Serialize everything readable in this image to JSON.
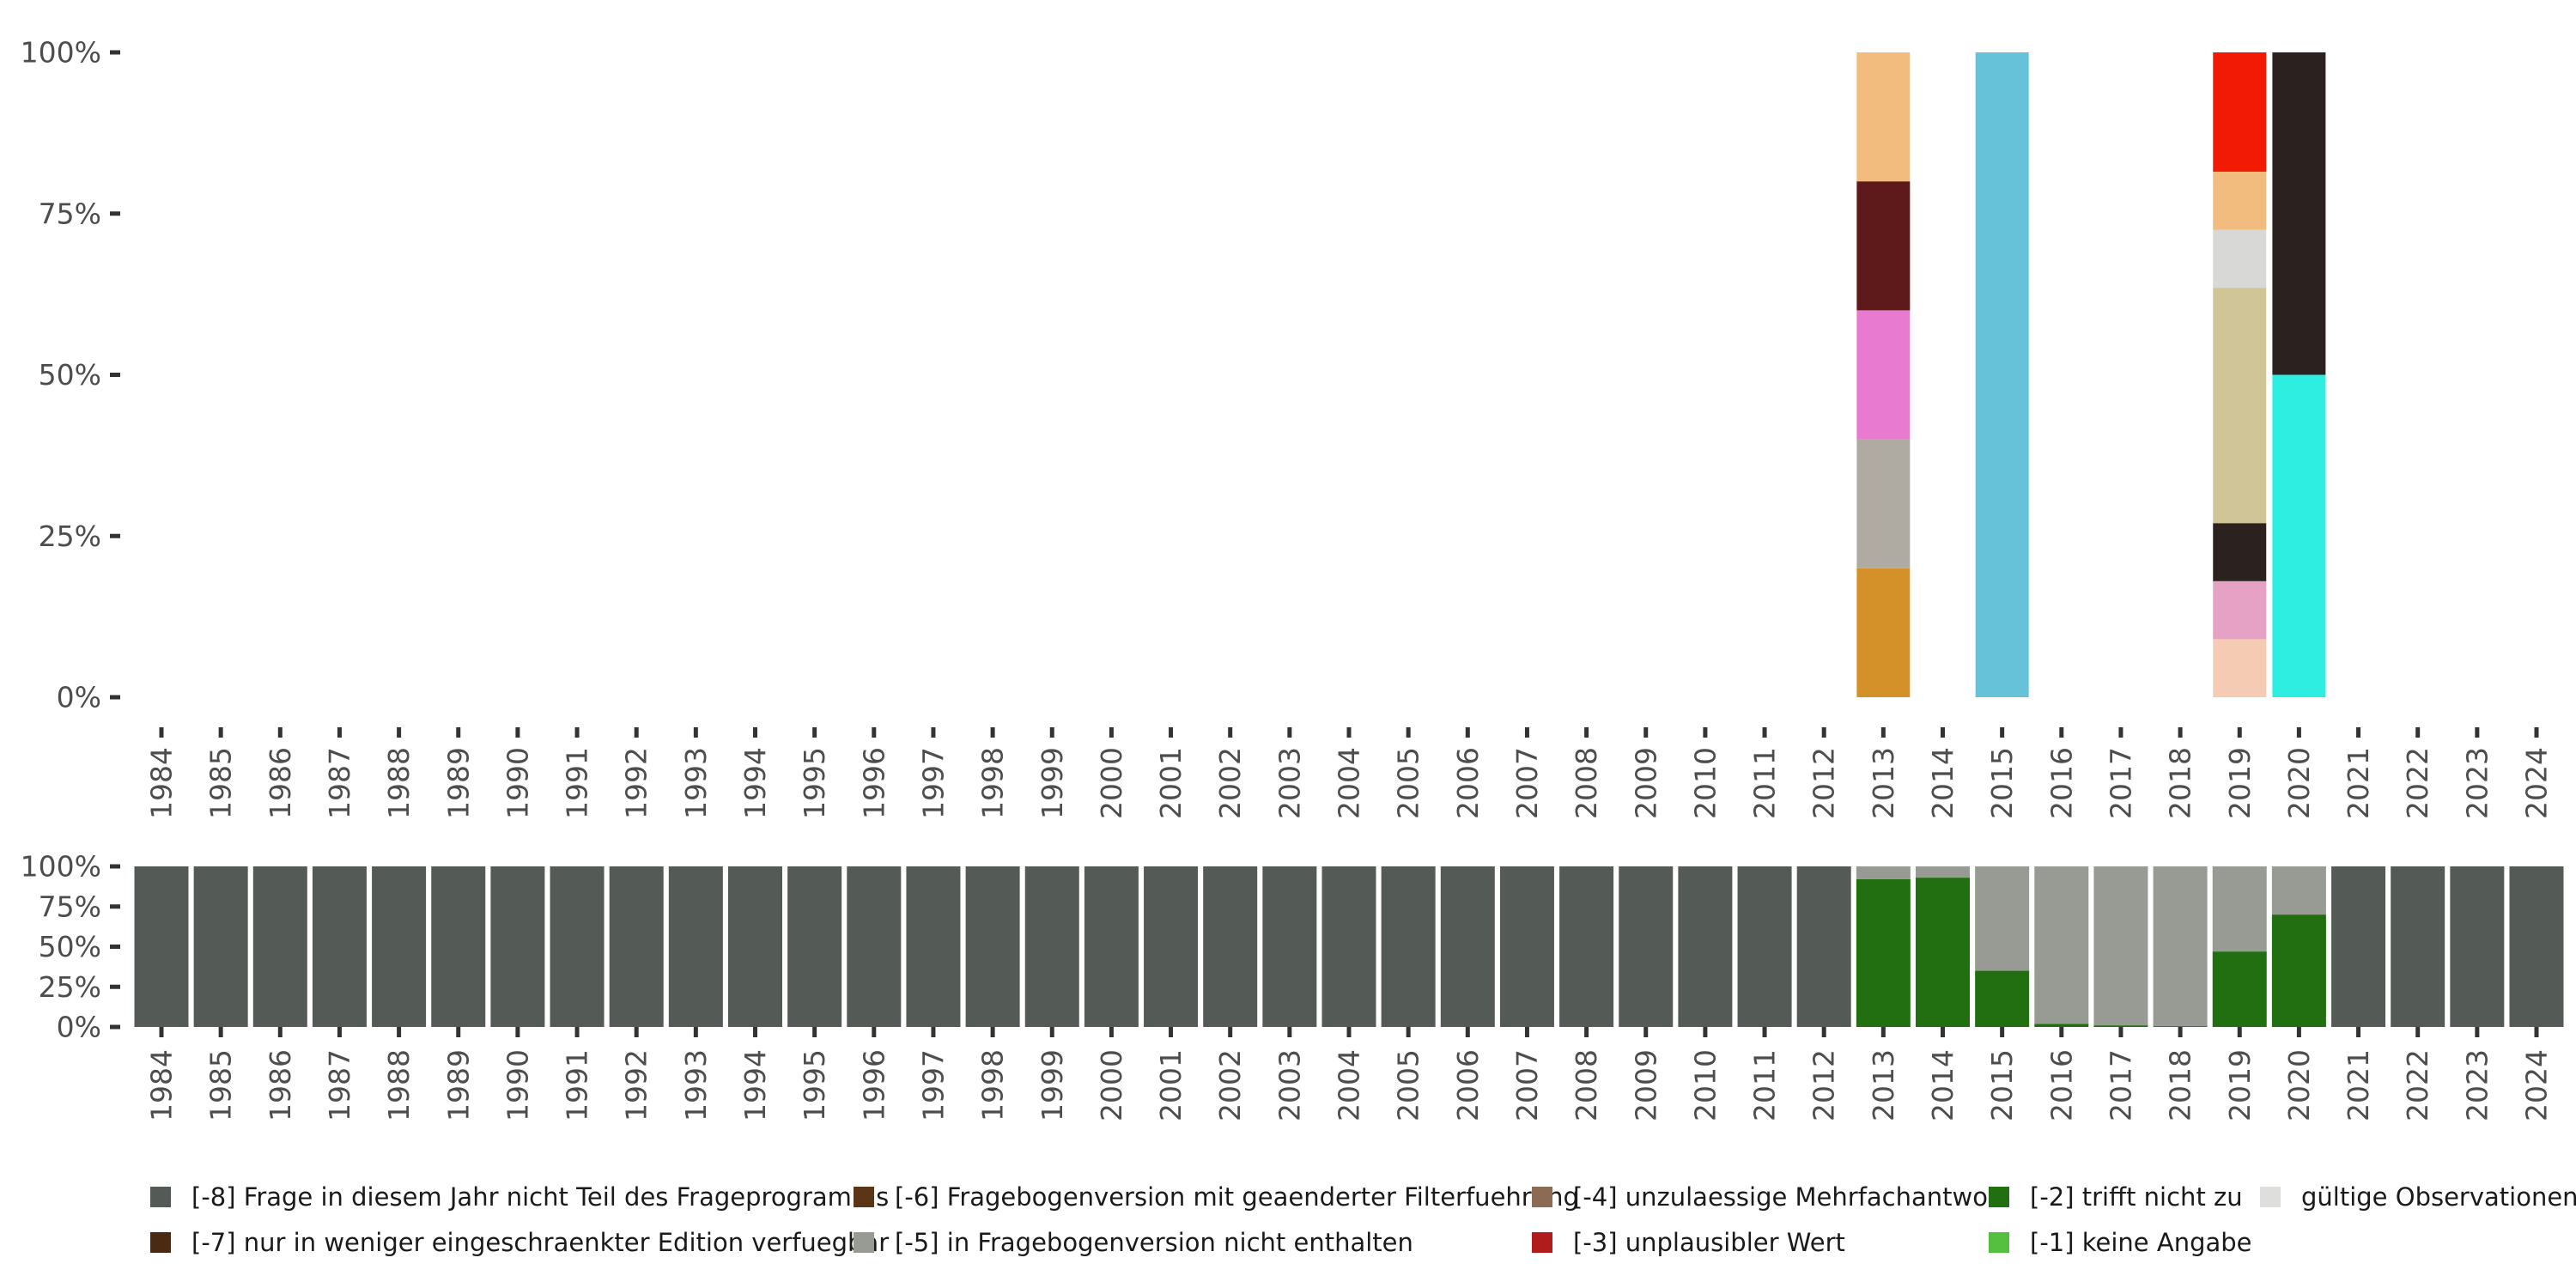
{
  "chart_data": [
    {
      "id": "top",
      "type": "bar",
      "stacked": true,
      "categories": [
        "1984",
        "1985",
        "1986",
        "1987",
        "1988",
        "1989",
        "1990",
        "1991",
        "1992",
        "1993",
        "1994",
        "1995",
        "1996",
        "1997",
        "1998",
        "1999",
        "2000",
        "2001",
        "2002",
        "2003",
        "2004",
        "2005",
        "2006",
        "2007",
        "2008",
        "2009",
        "2010",
        "2011",
        "2012",
        "2013",
        "2014",
        "2015",
        "2016",
        "2017",
        "2018",
        "2019",
        "2020",
        "2021",
        "2022",
        "2023",
        "2024"
      ],
      "ylim": [
        0,
        100
      ],
      "yticks": [
        0,
        25,
        50,
        75,
        100
      ],
      "ytick_labels": [
        "0%",
        "25%",
        "50%",
        "75%",
        "100%"
      ],
      "stacks": [
        {
          "category": "2013",
          "segments": [
            {
              "value": 20,
              "color": "#D4912A"
            },
            {
              "value": 20,
              "color": "#B0ABA2"
            },
            {
              "value": 20,
              "color": "#E87BD0"
            },
            {
              "value": 20,
              "color": "#5E1A1A"
            },
            {
              "value": 20,
              "color": "#F2BC7E"
            }
          ]
        },
        {
          "category": "2015",
          "segments": [
            {
              "value": 100,
              "color": "#66C2D9"
            }
          ]
        },
        {
          "category": "2019",
          "segments": [
            {
              "value": 9,
              "color": "#F5CBB4"
            },
            {
              "value": 9,
              "color": "#E6A2C5"
            },
            {
              "value": 9,
              "color": "#2B2220"
            },
            {
              "value": 36.5,
              "color": "#CFC596"
            },
            {
              "value": 9,
              "color": "#D8D8D6"
            },
            {
              "value": 9,
              "color": "#F2BC7E"
            },
            {
              "value": 18.5,
              "color": "#F21A05"
            }
          ]
        },
        {
          "category": "2020",
          "segments": [
            {
              "value": 50,
              "color": "#2EEDE1"
            },
            {
              "value": 50,
              "color": "#2B2220"
            }
          ]
        }
      ]
    },
    {
      "id": "bottom",
      "type": "bar",
      "stacked": true,
      "categories": [
        "1984",
        "1985",
        "1986",
        "1987",
        "1988",
        "1989",
        "1990",
        "1991",
        "1992",
        "1993",
        "1994",
        "1995",
        "1996",
        "1997",
        "1998",
        "1999",
        "2000",
        "2001",
        "2002",
        "2003",
        "2004",
        "2005",
        "2006",
        "2007",
        "2008",
        "2009",
        "2010",
        "2011",
        "2012",
        "2013",
        "2014",
        "2015",
        "2016",
        "2017",
        "2018",
        "2019",
        "2020",
        "2021",
        "2022",
        "2023",
        "2024"
      ],
      "ylim": [
        0,
        100
      ],
      "yticks": [
        0,
        25,
        50,
        75,
        100
      ],
      "ytick_labels": [
        "0%",
        "25%",
        "50%",
        "75%",
        "100%"
      ],
      "series": [
        {
          "name": "[-2] trifft nicht zu",
          "color": "#226F12",
          "values": [
            0,
            0,
            0,
            0,
            0,
            0,
            0,
            0,
            0,
            0,
            0,
            0,
            0,
            0,
            0,
            0,
            0,
            0,
            0,
            0,
            0,
            0,
            0,
            0,
            0,
            0,
            0,
            0,
            0,
            92,
            93,
            35,
            2,
            1,
            0.5,
            47,
            70,
            0,
            0,
            0,
            0
          ]
        },
        {
          "name": "[-5] in Fragebogenversion nicht enthalten",
          "color": "#989B93",
          "values": [
            0,
            0,
            0,
            0,
            0,
            0,
            0,
            0,
            0,
            0,
            0,
            0,
            0,
            0,
            0,
            0,
            0,
            0,
            0,
            0,
            0,
            0,
            0,
            0,
            0,
            0,
            0,
            0,
            0,
            8,
            7,
            65,
            98,
            99,
            99.5,
            53,
            30,
            0,
            0,
            0,
            0
          ]
        },
        {
          "name": "[-8] Frage in diesem Jahr nicht Teil des Frageprogramms",
          "color": "#545A55",
          "values": [
            100,
            100,
            100,
            100,
            100,
            100,
            100,
            100,
            100,
            100,
            100,
            100,
            100,
            100,
            100,
            100,
            100,
            100,
            100,
            100,
            100,
            100,
            100,
            100,
            100,
            100,
            100,
            100,
            100,
            0,
            0,
            0,
            0,
            0,
            0,
            0,
            0,
            100,
            100,
            100,
            100
          ]
        }
      ]
    }
  ],
  "legend": {
    "placement": "bottom",
    "items": [
      {
        "label": "[-8] Frage in diesem Jahr nicht Teil des Frageprogramms",
        "color": "#545A55"
      },
      {
        "label": "[-7] nur in weniger eingeschraenkter Edition verfuegbar",
        "color": "#4A2A12"
      },
      {
        "label": "[-6] Fragebogenversion mit geaenderter Filterfuehrung",
        "color": "#5B3516"
      },
      {
        "label": "[-5] in Fragebogenversion nicht enthalten",
        "color": "#989B93"
      },
      {
        "label": "[-4] unzulaessige Mehrfachantwort",
        "color": "#8C6B55"
      },
      {
        "label": "[-3] unplausibler Wert",
        "color": "#B01C1C"
      },
      {
        "label": "[-2] trifft nicht zu",
        "color": "#226F12"
      },
      {
        "label": "[-1] keine Angabe",
        "color": "#55C040"
      },
      {
        "label": "gültige Observationen",
        "color": "#DEDEDC"
      }
    ]
  }
}
